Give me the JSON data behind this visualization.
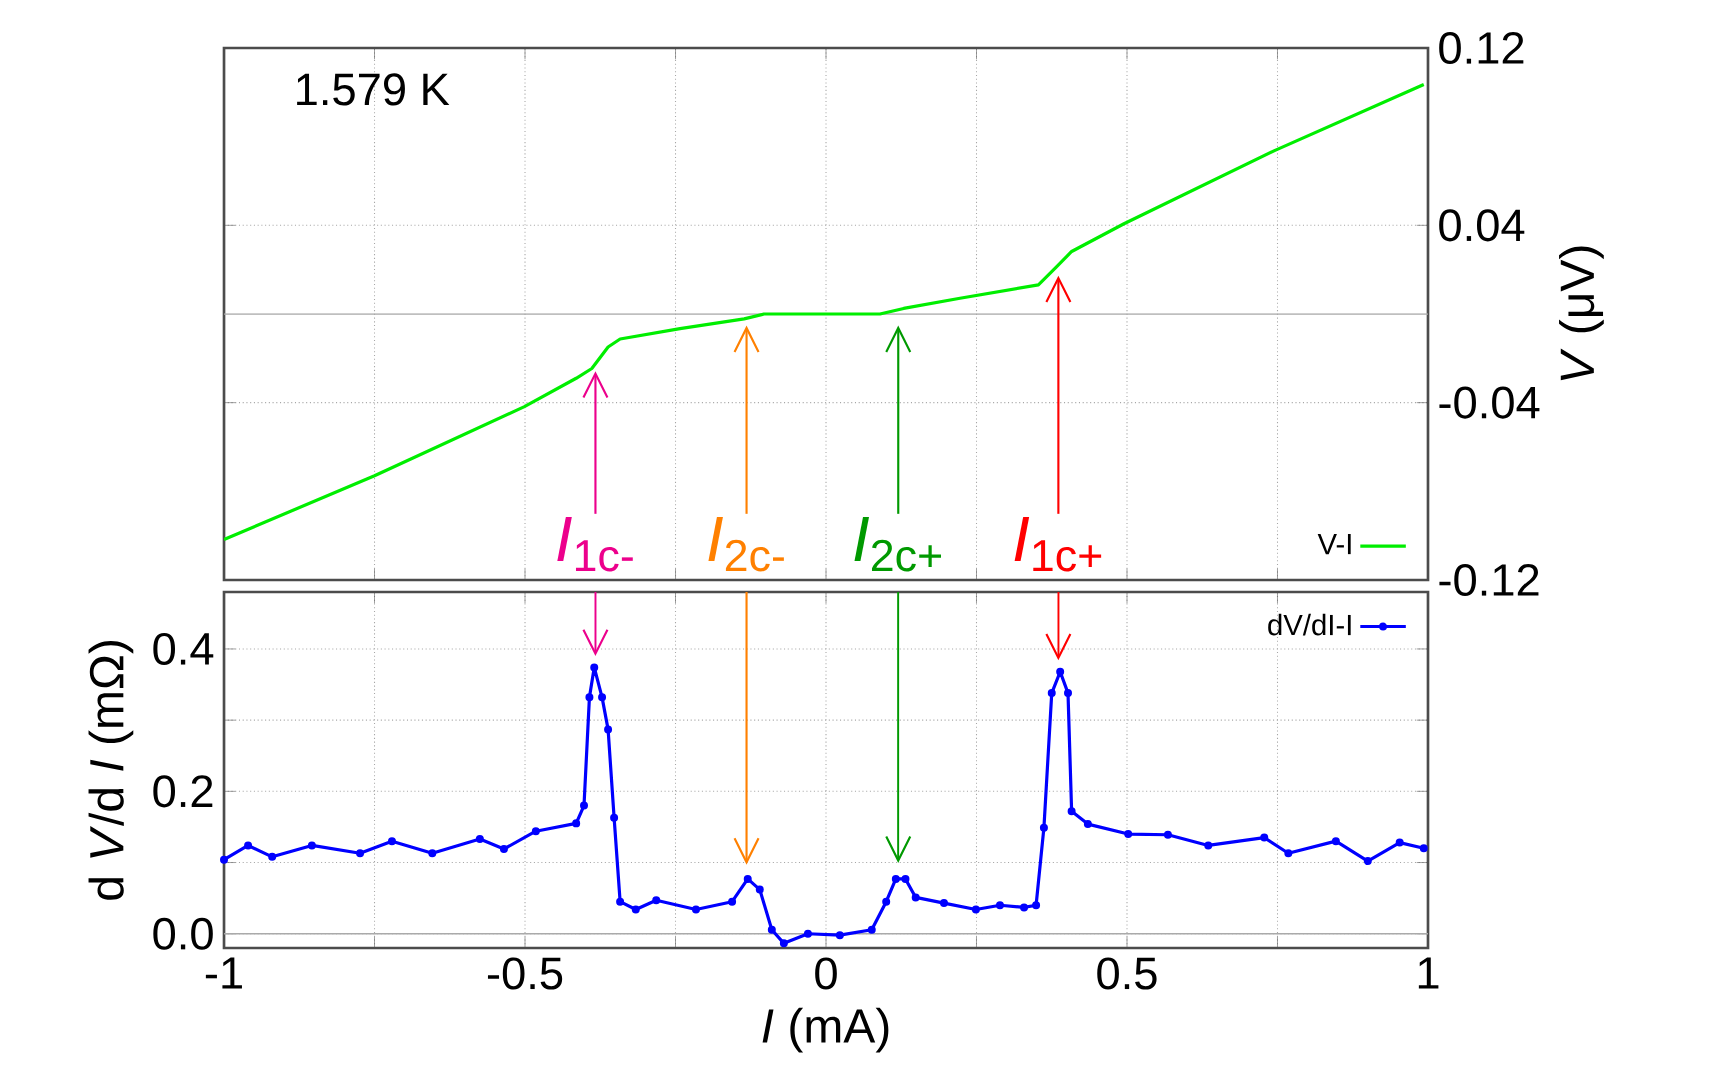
{
  "chart_data": [
    {
      "type": "line",
      "xlim": [
        -1,
        1
      ],
      "ylim": [
        -0.12,
        0.12
      ],
      "ylabel": "*V* (μV)",
      "legend": "bottom right",
      "grid": true,
      "marker": "none",
      "tick_labels": "y",
      "xticks": [
        -1,
        {
          "value": -0.75,
          "label": null
        },
        -0.5,
        {
          "value": -0.25,
          "label": null
        },
        0,
        {
          "value": 0.25,
          "label": null
        },
        0.5,
        {
          "value": 0.75,
          "label": null
        },
        1
      ],
      "yticks": [
        -0.12,
        -0.04,
        0.04,
        0.12
      ],
      "ref_lines": [
        {
          "axis": "y",
          "value": 0,
          "color": "#aaaaaa"
        }
      ],
      "annotations": [
        "1.579 K",
        {
          "text": "*I*$_{1c-}$",
          "x": -0.383,
          "y": -0.0246
        },
        {
          "text": "*I*$_{2c-}$",
          "x": -0.132,
          "y": -0.004
        },
        {
          "text": "*I*$_{2c+}$",
          "x": 0.12,
          "y": -0.004
        },
        {
          "text": "*I*$_{1c+}$",
          "x": 0.386,
          "y": 0.0185
        }
      ],
      "series": [
        {
          "name": "V-I",
          "color": "#00ee00",
          "x": [
            -1,
            -0.75,
            -0.501,
            -0.415,
            -0.389,
            -0.362,
            -0.342,
            -0.2425,
            -0.136,
            -0.103,
            0.0897,
            0.129,
            0.2226,
            0.3528,
            0.382,
            0.408,
            0.495,
            0.745,
            0.993
          ],
          "values": [
            -0.1017,
            -0.073,
            -0.0418,
            -0.029,
            -0.0246,
            -0.0149,
            -0.0113,
            -0.0066,
            -0.0022,
            0,
            0,
            0.0025,
            0.0071,
            0.0131,
            0.021,
            0.0282,
            0.0407,
            0.0737,
            0.1035
          ]
        }
      ]
    },
    {
      "type": "line",
      "xlim": [
        -1,
        1
      ],
      "ylim": [
        -0.02,
        0.48
      ],
      "xlabel": "*I* (mA)",
      "ylabel": "d *V*/d *I* (mΩ)",
      "legend": "top right",
      "grid": true,
      "marker": "circle",
      "xticks": [
        -1,
        {
          "value": -0.75,
          "label": null
        },
        -0.5,
        {
          "value": -0.25,
          "label": null
        },
        0,
        {
          "value": 0.25,
          "label": null
        },
        0.5,
        {
          "value": 0.75,
          "label": null
        },
        1
      ],
      "yticks": [
        {
          "value": 0,
          "label": "0.0"
        },
        {
          "value": 0.1,
          "label": null
        },
        0.2,
        {
          "value": 0.3,
          "label": null
        },
        0.4
      ],
      "ref_lines": [
        {
          "axis": "y",
          "value": 0,
          "color": "#aaaaaa"
        }
      ],
      "series": [
        {
          "name": "dV/dI-I",
          "color": "#0000ff",
          "x": [
            -1,
            -0.96,
            -0.92,
            -0.854,
            -0.774,
            -0.721,
            -0.654,
            -0.575,
            -0.535,
            -0.482,
            -0.415,
            -0.402,
            -0.393,
            -0.385,
            -0.372,
            -0.362,
            -0.352,
            -0.342,
            -0.316,
            -0.282,
            -0.216,
            -0.156,
            -0.13,
            -0.11,
            -0.09,
            -0.07,
            -0.03,
            0.023,
            0.076,
            0.1,
            0.116,
            0.132,
            0.149,
            0.196,
            0.249,
            0.289,
            0.329,
            0.349,
            0.362,
            0.375,
            0.389,
            0.402,
            0.408,
            0.435,
            0.502,
            0.568,
            0.635,
            0.728,
            0.768,
            0.847,
            0.9,
            0.953,
            0.993
          ],
          "values": [
            0.104,
            0.124,
            0.108,
            0.124,
            0.113,
            0.13,
            0.113,
            0.133,
            0.119,
            0.144,
            0.155,
            0.18,
            0.332,
            0.374,
            0.332,
            0.287,
            0.163,
            0.045,
            0.034,
            0.047,
            0.034,
            0.045,
            0.077,
            0.062,
            0.0056,
            -0.0135,
            0,
            -0.002,
            0.0056,
            0.045,
            0.077,
            0.077,
            0.051,
            0.043,
            0.034,
            0.04,
            0.037,
            0.04,
            0.149,
            0.338,
            0.368,
            0.338,
            0.172,
            0.154,
            0.14,
            0.139,
            0.124,
            0.135,
            0.113,
            0.13,
            0.102,
            0.128,
            0.12
          ]
        }
      ]
    }
  ]
}
